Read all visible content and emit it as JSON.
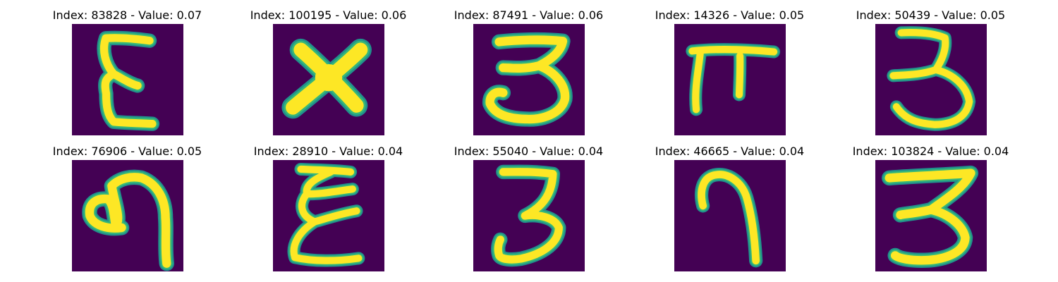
{
  "colors": {
    "background": "#440154",
    "stroke_core": "#fde725",
    "stroke_edge": "#35b779",
    "stroke_halo": "#21918c"
  },
  "images": [
    {
      "title": "Index: 83828 - Value: 0.07",
      "glyph": "glyph-epsilon"
    },
    {
      "title": "Index: 100195 - Value: 0.06",
      "glyph": "glyph-x"
    },
    {
      "title": "Index: 87491 - Value: 0.06",
      "glyph": "glyph-three-wide"
    },
    {
      "title": "Index: 14326 - Value: 0.05",
      "glyph": "glyph-pi"
    },
    {
      "title": "Index: 50439 - Value: 0.05",
      "glyph": "glyph-three-open"
    },
    {
      "title": "Index: 76906 - Value: 0.05",
      "glyph": "glyph-loop-hook"
    },
    {
      "title": "Index: 28910 - Value: 0.04",
      "glyph": "glyph-epsilon-tall"
    },
    {
      "title": "Index: 55040 - Value: 0.04",
      "glyph": "glyph-three-hook"
    },
    {
      "title": "Index: 46665 - Value: 0.04",
      "glyph": "glyph-arch"
    },
    {
      "title": "Index: 103824 - Value: 0.04",
      "glyph": "glyph-three-bold"
    }
  ]
}
